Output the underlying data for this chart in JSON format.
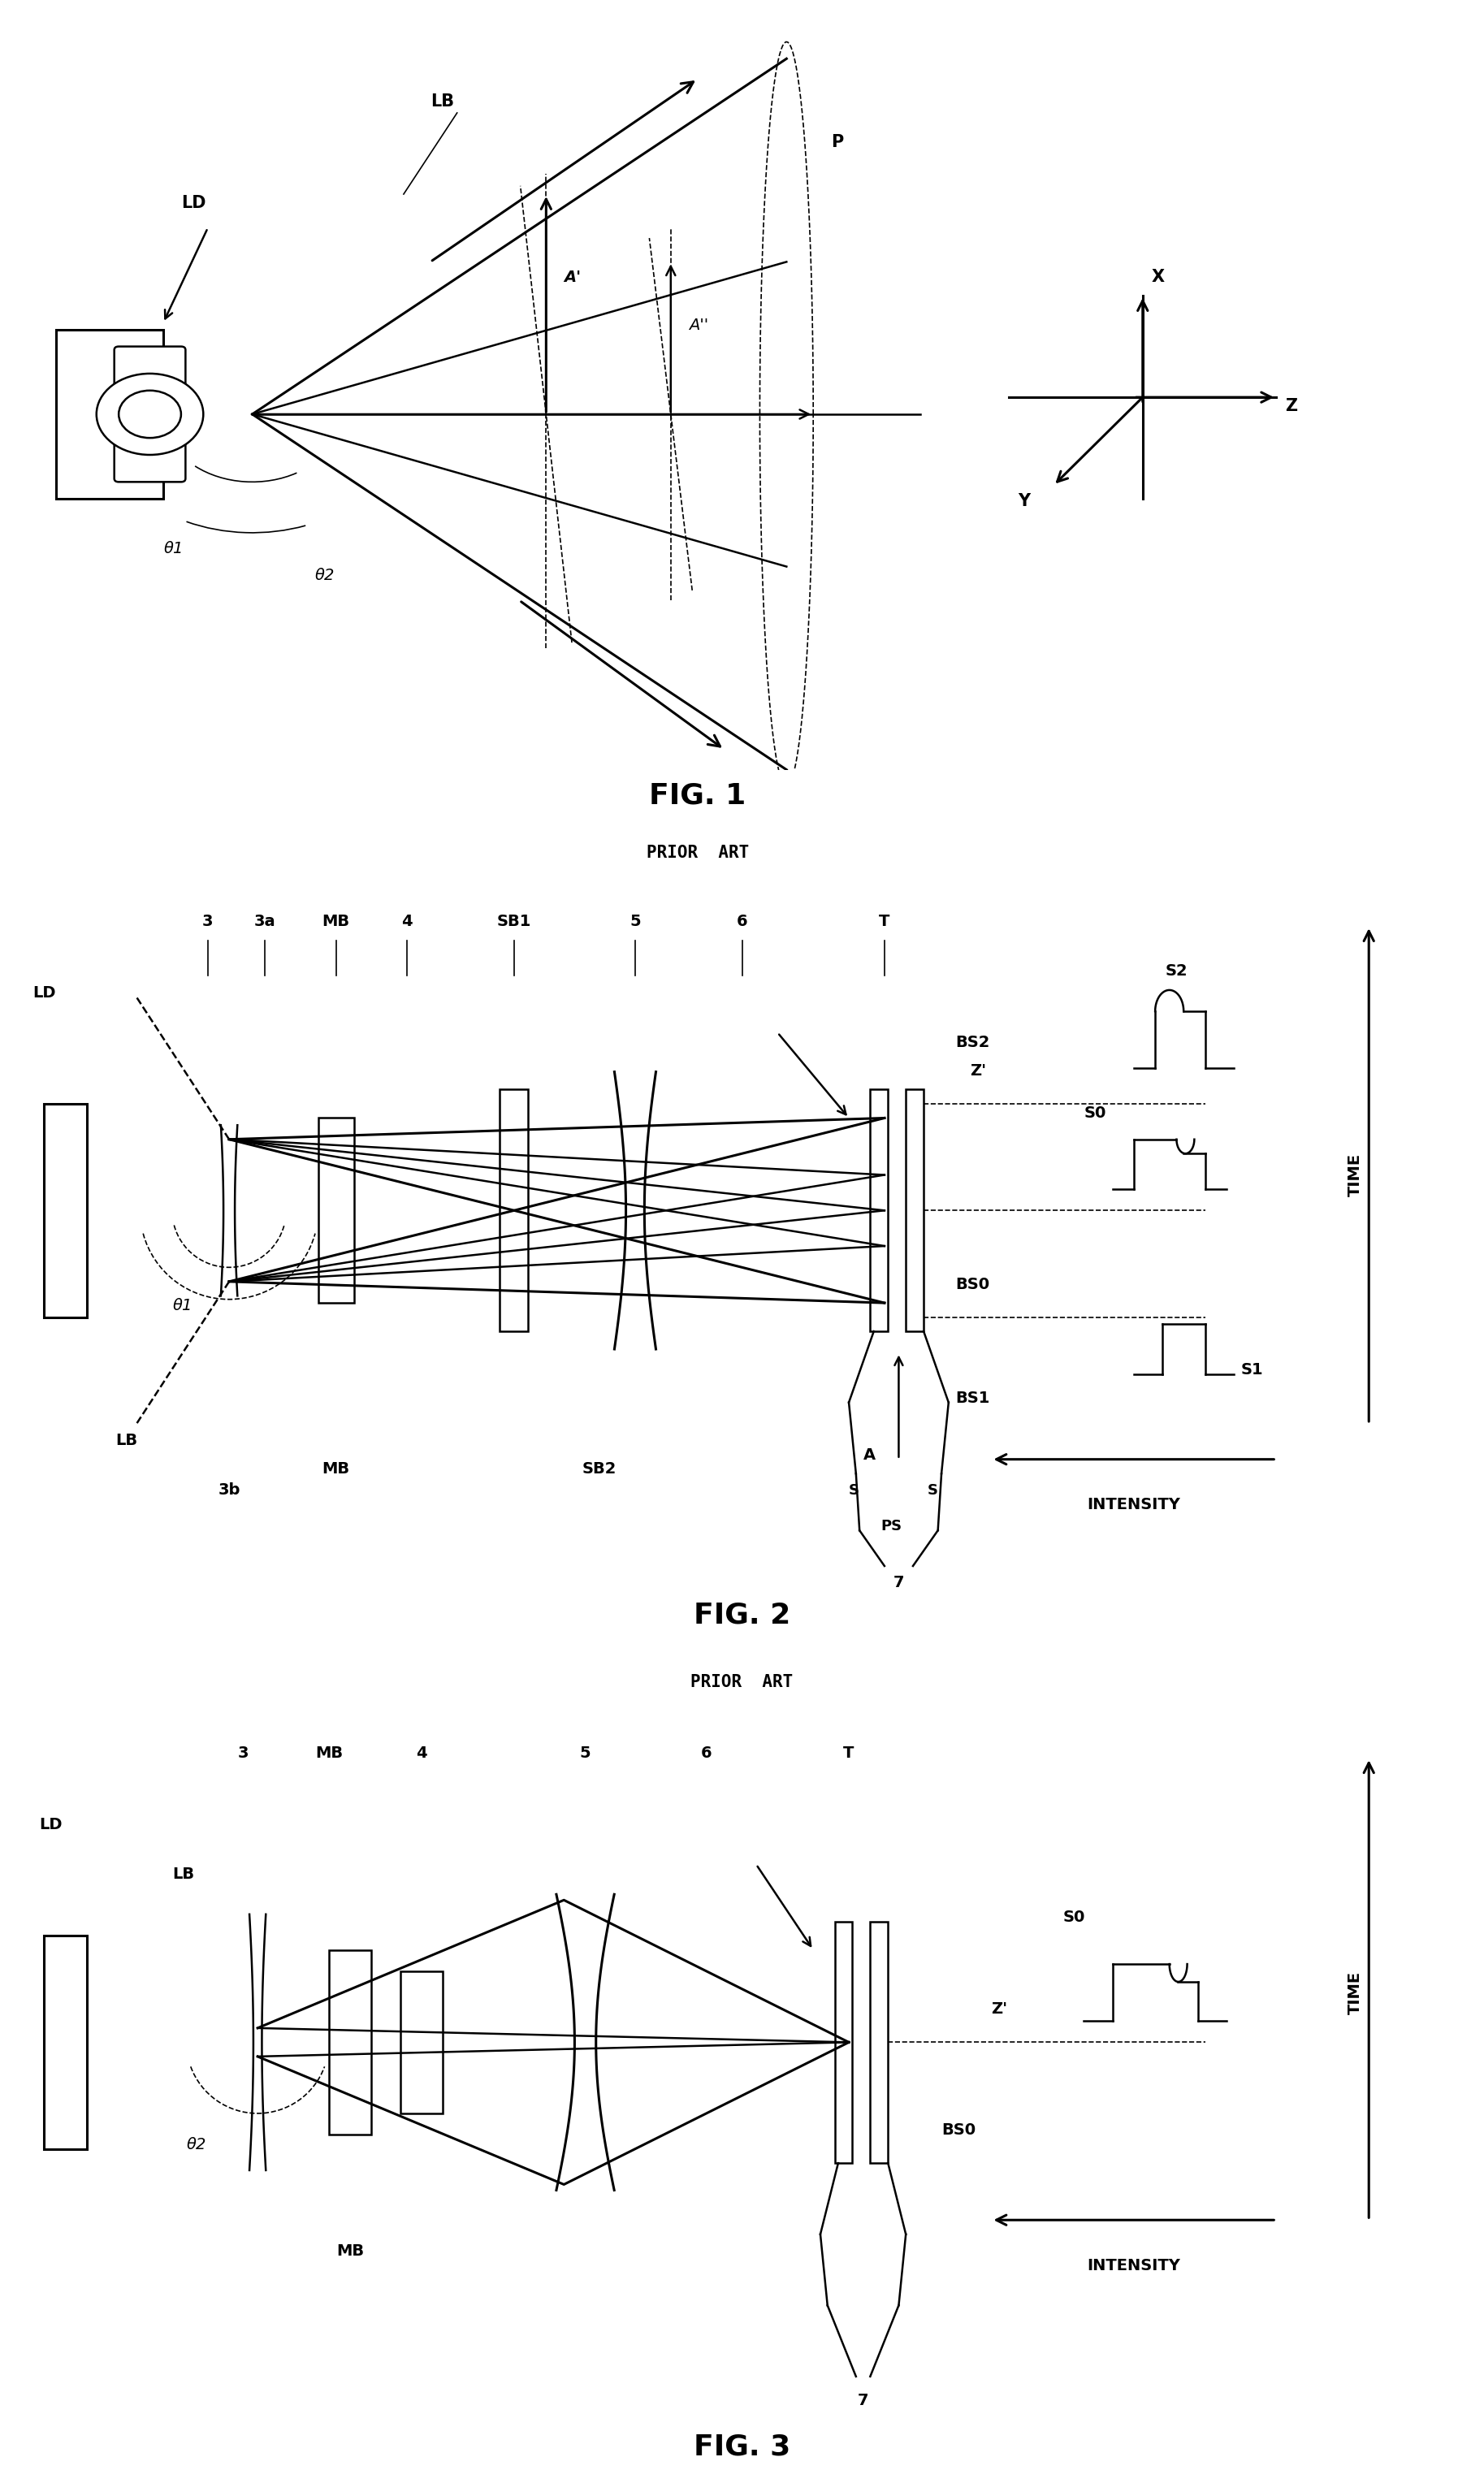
{
  "fig_width": 18.27,
  "fig_height": 30.57,
  "bg_color": "#ffffff",
  "line_color": "#000000",
  "fig1_title": "FIG. 1",
  "fig1_subtitle": "PRIOR  ART",
  "fig2_title": "FIG. 2",
  "fig2_subtitle": "PRIOR  ART",
  "fig3_title": "FIG. 3",
  "fig3_subtitle": "PRIOR  ART",
  "title_fontsize": 26,
  "subtitle_fontsize": 15,
  "label_fontsize": 14
}
